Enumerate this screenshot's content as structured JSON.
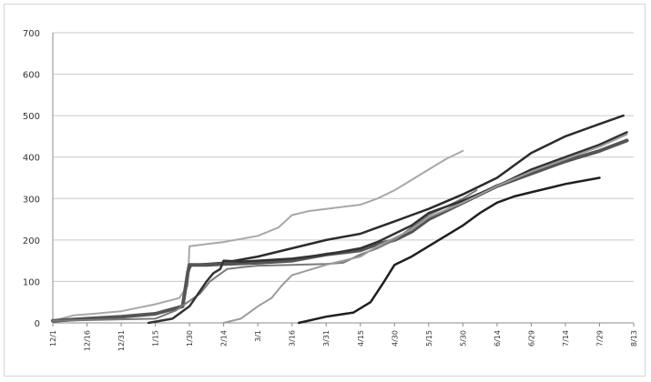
{
  "chart_data": {
    "type": "line",
    "title": "",
    "xlabel": "",
    "ylabel": "",
    "ylim": [
      0,
      700
    ],
    "yticks": [
      0,
      100,
      200,
      300,
      400,
      500,
      600,
      700
    ],
    "grid": true,
    "legend": "none",
    "x_tick_labels": [
      "12/1",
      "12/16",
      "12/31",
      "1/15",
      "1/30",
      "2/14",
      "3/1",
      "3/16",
      "3/31",
      "4/15",
      "4/30",
      "5/15",
      "5/30",
      "6/14",
      "6/29",
      "7/14",
      "7/29",
      "8/13"
    ],
    "series": [
      {
        "color": "#a8a8a8",
        "width": 2,
        "points": [
          [
            0,
            5
          ],
          [
            0.6,
            18
          ],
          [
            1.2,
            22
          ],
          [
            2,
            28
          ],
          [
            3,
            45
          ],
          [
            3.7,
            60
          ],
          [
            3.95,
            90
          ],
          [
            4,
            185
          ],
          [
            4.5,
            190
          ],
          [
            5,
            195
          ],
          [
            6,
            210
          ],
          [
            6.6,
            230
          ],
          [
            7,
            260
          ],
          [
            7.5,
            270
          ],
          [
            8,
            275
          ],
          [
            9,
            285
          ],
          [
            9.5,
            300
          ],
          [
            10,
            320
          ],
          [
            10.4,
            340
          ],
          [
            11,
            370
          ],
          [
            11.5,
            395
          ],
          [
            12,
            415
          ]
        ]
      },
      {
        "color": "#2b2b2b",
        "width": 2.5,
        "points": [
          [
            0,
            5
          ],
          [
            1,
            10
          ],
          [
            2,
            15
          ],
          [
            3,
            22
          ],
          [
            3.8,
            40
          ],
          [
            3.95,
            120
          ],
          [
            4.05,
            140
          ],
          [
            4.5,
            142
          ],
          [
            5,
            145
          ],
          [
            6,
            160
          ],
          [
            7,
            180
          ],
          [
            8,
            200
          ],
          [
            9,
            215
          ],
          [
            9.5,
            230
          ],
          [
            10,
            245
          ],
          [
            10.5,
            260
          ],
          [
            11,
            275
          ],
          [
            12,
            310
          ],
          [
            13,
            350
          ],
          [
            14,
            410
          ],
          [
            15,
            450
          ],
          [
            16,
            480
          ],
          [
            16.7,
            500
          ]
        ]
      },
      {
        "color": "#555555",
        "width": 4,
        "points": [
          [
            0,
            5
          ],
          [
            1,
            10
          ],
          [
            2,
            15
          ],
          [
            3,
            22
          ],
          [
            3.8,
            40
          ],
          [
            3.95,
            120
          ],
          [
            4,
            140
          ],
          [
            4.5,
            140
          ],
          [
            5,
            142
          ],
          [
            6,
            145
          ],
          [
            7,
            150
          ],
          [
            8,
            165
          ],
          [
            9,
            175
          ],
          [
            9.5,
            190
          ],
          [
            10,
            200
          ],
          [
            10.5,
            220
          ],
          [
            11,
            250
          ],
          [
            12,
            290
          ],
          [
            13,
            330
          ],
          [
            14,
            360
          ],
          [
            15,
            390
          ],
          [
            16,
            415
          ],
          [
            16.8,
            440
          ]
        ]
      },
      {
        "color": "#7a7a7a",
        "width": 2,
        "points": [
          [
            0,
            5
          ],
          [
            3,
            10
          ],
          [
            3.6,
            30
          ],
          [
            4.3,
            70
          ],
          [
            4.6,
            100
          ],
          [
            5.1,
            130
          ],
          [
            5.6,
            135
          ],
          [
            6,
            138
          ],
          [
            7,
            140
          ],
          [
            8,
            142
          ],
          [
            8.5,
            145
          ],
          [
            9,
            165
          ],
          [
            9.5,
            180
          ],
          [
            10,
            200
          ],
          [
            10.5,
            230
          ],
          [
            11,
            260
          ],
          [
            11.5,
            280
          ],
          [
            12,
            300
          ],
          [
            12.4,
            320
          ]
        ]
      },
      {
        "color": "#333333",
        "width": 2.5,
        "points": [
          [
            2.8,
            0
          ],
          [
            3.5,
            10
          ],
          [
            4,
            40
          ],
          [
            4.5,
            100
          ],
          [
            4.7,
            120
          ],
          [
            4.9,
            130
          ],
          [
            5,
            150
          ],
          [
            5.5,
            148
          ],
          [
            6,
            150
          ],
          [
            7,
            155
          ],
          [
            8,
            165
          ],
          [
            9,
            180
          ],
          [
            9.5,
            195
          ],
          [
            10,
            215
          ],
          [
            10.5,
            235
          ],
          [
            11,
            265
          ],
          [
            12,
            295
          ],
          [
            13,
            330
          ],
          [
            14,
            370
          ],
          [
            15,
            400
          ],
          [
            16,
            430
          ],
          [
            16.8,
            460
          ]
        ]
      },
      {
        "color": "#9b9b9b",
        "width": 2,
        "points": [
          [
            5,
            0
          ],
          [
            5.5,
            10
          ],
          [
            6,
            40
          ],
          [
            6.4,
            60
          ],
          [
            6.7,
            90
          ],
          [
            7,
            115
          ],
          [
            8,
            140
          ],
          [
            9,
            160
          ],
          [
            9.5,
            185
          ],
          [
            10,
            205
          ],
          [
            10.5,
            225
          ],
          [
            11,
            255
          ],
          [
            12,
            290
          ],
          [
            13,
            330
          ],
          [
            14,
            365
          ],
          [
            15,
            395
          ],
          [
            16,
            425
          ],
          [
            16.8,
            455
          ]
        ]
      },
      {
        "color": "#1f1f1f",
        "width": 2.5,
        "points": [
          [
            7.2,
            0
          ],
          [
            8,
            15
          ],
          [
            8.8,
            25
          ],
          [
            9.3,
            50
          ],
          [
            9.7,
            100
          ],
          [
            10,
            140
          ],
          [
            10.5,
            160
          ],
          [
            11,
            185
          ],
          [
            11.5,
            210
          ],
          [
            12,
            235
          ],
          [
            12.5,
            265
          ],
          [
            13,
            290
          ],
          [
            13.5,
            305
          ],
          [
            14,
            315
          ],
          [
            14.5,
            325
          ],
          [
            15,
            335
          ],
          [
            16,
            350
          ]
        ]
      }
    ]
  }
}
